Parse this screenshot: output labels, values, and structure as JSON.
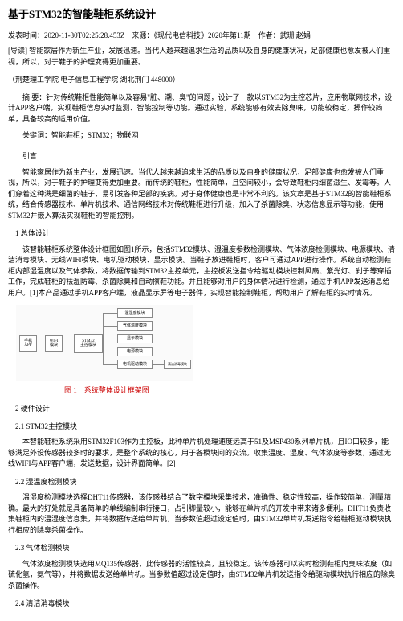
{
  "title": "基于STM32的智能鞋柜系统设计",
  "meta": {
    "pub_time_label": "发表时间：",
    "pub_time": "2020-11-30T02:25:28.453Z",
    "source_label": "来源：",
    "source": "《现代电信科技》2020年第11期",
    "author_label": "作者：",
    "author": "武珊 赵娟"
  },
  "intro": "[导读] 智能家居作为新生产业，发展迅速。当代人越来越追求生活的品质以及自身的健康状况，足部健康也愈发被人们重视，所以，对于鞋子的护理变得更加重要。",
  "affiliation": "（荆楚理工学院 电子信息工程学院 湖北荆门 448000）",
  "abstract_label": "摘 要：",
  "abstract": "针对传统鞋柜性能简单以及容易\"脏、潮、臭\"的问题，设计了一款以STM32为主控芯片，应用物联网技术，设计APP客户端，实现鞋柜信息实时监测、智能控制等功能。通过实验，系统能够有效去除臭味，功能较稳定，操作较简单，具备较高的适用价值。",
  "keywords_label": "关键词：",
  "keywords": "智能鞋柜；STM32；物联网",
  "sections": {
    "intro_heading": "引言",
    "intro_para": "智能家居作为新生产业，发展迅速。当代人越来越追求生活的品质以及自身的健康状况，足部健康也愈发被人们重视，所以，对于鞋子的护理变得更加重要。而传统的鞋柜，性能简单，且空间较小，会导致鞋柜内细菌滋生、发霉等。人们穿着这种满是细菌的鞋子，易引发各种足部的疾病。对于身体健康也是非常不利的。该文章是基于STM32的智能鞋柜系统，结合传感器技术、单片机技术、通信网络技术对传统鞋柜进行升级，加入了杀菌除臭、状态信息显示等功能，使用STM32并嵌入算法实现鞋柜的智能控制。",
    "s1_heading": "1 总体设计",
    "s1_para": "该智能鞋柜系统整体设计框图如图1所示，包括STM32模块、湿温度参数检测模块、气体浓度检测模块、电源模块、清洁消毒模块、无线WIFI模块、电机驱动模块、显示模块。当鞋子放进鞋柜时，客户可通过APP进行操作。系统自动检测鞋柜内部湿温度以及气体参数，将数据传输到STM32主控单元，主控板发送指令给驱动模块控制风扇、紫光灯、刹子等穿插工作，完成鞋柜的祛湿防霉、杀菌除臭和自动擦鞋功能。并且能够对用户的身体情况进行检测，通过手机APP发送消息给用户。[1]本产品通过手机APP客户端，液晶显示屏等电子器件，实现智能控制鞋柜，帮助用户了解鞋柜的实时情况。",
    "figure1_caption": "图 1 系统整体设计框架图",
    "s2_heading": "2 硬件设计",
    "s21_heading": "2.1 STM32主控模块",
    "s21_para": "本智能鞋柜系统采用STM32F103作为主控板，此种单片机处理速度远高于51及MSP430系列单片机，且IO口较多，能够满足外设传感器较多时的要求，是整个系统的核心，用于各模块间的交流。收集温度、湿度、气体浓度等参数，通过无线WIFI与APP客户端，发送数据，设计界面简单。[2]",
    "s22_heading": "2.2 湿温度检测模块",
    "s22_para": "温湿度检测模块选择DHT11传感器，该传感器结合了数字模块采集技术，准确性、稳定性较高，操作较简单，测量精确。最大的好处就是具备简单的单线编制串行接口，占引脚量较小，能够在单片机的开发中带来诸多便利。DHT11负责收集鞋柜内的温湿度信息集，并将数据传送给单片机，当参数值超过设定值时，由STM32单片机发送指令给鞋柜驱动模块执行相应的除臭杀菌操作。",
    "s23_heading": "2.3 气体检测模块",
    "s23_para": "气体浓度检测模块选用MQ135传感器，此传感器的活性较高，且较稳定。该传感器可以实时检测鞋柜内臭味浓度（如硫化氢，氨气等），并将数据发送给单片机。当参数值超过设定值时，由STM32单片机发送指令给驱动模块执行相应的除臭杀菌操作。",
    "s24_heading": "2.4 清洁消毒模块"
  },
  "diagram": {
    "boxes": {
      "app": "手机\nAPP",
      "wifi": "WIFI\n模块",
      "stm32": "STM32\n主控模块",
      "temp": "温湿度模块",
      "gas": "气体浓度模块",
      "display": "显示模块",
      "power": "电源模块",
      "motor": "电机驱动模块",
      "clean": "清洁消毒模块"
    }
  },
  "colors": {
    "text": "#000000",
    "caption": "#cc0000",
    "diagram_border": "#888888",
    "background": "#ffffff"
  }
}
